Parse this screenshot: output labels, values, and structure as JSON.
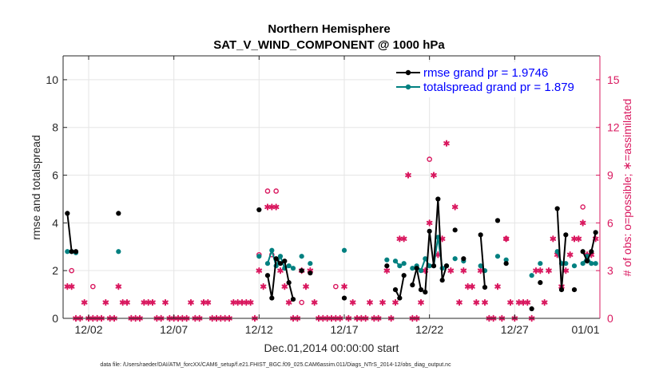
{
  "chart_data": {
    "type": "scatter",
    "title": "Northern Hemisphere",
    "subtitle": "SAT_V_WIND_COMPONENT @ 1000 hPa",
    "xlabel": "Dec.01,2014 00:00:00 start",
    "ylabel": "rmse and totalspread",
    "y2label": "# of obs: o=possible; ∗=assimilated",
    "footnote": "data file: /Users/raeder/DAI/ATM_forcXX/CAM6_setup/f.e21.FHIST_BGC.f09_025.CAM6assim.011/Diags_NTrS_2014-12/obs_diag_output.nc",
    "xlim": [
      0.5,
      31.25
    ],
    "ylim": [
      0,
      11
    ],
    "y2lim": [
      0,
      16.5
    ],
    "x_ticks": [
      {
        "value": 2,
        "label": "12/02"
      },
      {
        "value": 7,
        "label": "12/07"
      },
      {
        "value": 12,
        "label": "12/12"
      },
      {
        "value": 17,
        "label": "12/17"
      },
      {
        "value": 22,
        "label": "12/22"
      },
      {
        "value": 27,
        "label": "12/27"
      },
      {
        "value": 32,
        "label": "01/01"
      }
    ],
    "y_ticks": [
      0,
      2,
      4,
      6,
      8,
      10
    ],
    "y2_ticks": [
      0,
      3,
      6,
      9,
      12,
      15
    ],
    "grid": true,
    "legend_position": "top-right",
    "colors": {
      "rmse": "#000000",
      "spread": "#008080",
      "obs": "#d9185f",
      "grid": "#e5e5e5",
      "axis": "#262626",
      "legend_text": "#0000ff"
    },
    "series": [
      {
        "name": "rmse grand pr = 1.9746",
        "key": "rmse",
        "points": [
          [
            0.75,
            4.4
          ],
          [
            1.0,
            2.8
          ],
          [
            1.25,
            2.8
          ],
          [
            3.75,
            4.4
          ],
          [
            12.0,
            4.55
          ],
          [
            12.5,
            1.8
          ],
          [
            12.75,
            0.85
          ],
          [
            13.0,
            2.5
          ],
          [
            13.25,
            2.3
          ],
          [
            13.5,
            2.4
          ],
          [
            13.75,
            1.5
          ],
          [
            14.0,
            0.8
          ],
          [
            14.5,
            2.0
          ],
          [
            15.0,
            1.9
          ],
          [
            17.0,
            0.85
          ],
          [
            19.5,
            2.2
          ],
          [
            20.0,
            1.2
          ],
          [
            20.25,
            0.85
          ],
          [
            20.5,
            1.8
          ],
          [
            21.0,
            1.4
          ],
          [
            21.25,
            2.1
          ],
          [
            21.5,
            1.2
          ],
          [
            21.75,
            1.1
          ],
          [
            22.0,
            3.65
          ],
          [
            22.25,
            2.2
          ],
          [
            22.5,
            5.0
          ],
          [
            22.75,
            1.6
          ],
          [
            23.0,
            2.2
          ],
          [
            23.5,
            3.7
          ],
          [
            24.0,
            2.5
          ],
          [
            25.0,
            3.5
          ],
          [
            25.25,
            1.3
          ],
          [
            26.0,
            4.1
          ],
          [
            26.5,
            2.3
          ],
          [
            28.0,
            0.4
          ],
          [
            28.5,
            1.5
          ],
          [
            29.5,
            4.6
          ],
          [
            29.75,
            1.2
          ],
          [
            30.0,
            3.5
          ],
          [
            30.5,
            1.2
          ],
          [
            31.0,
            2.8
          ],
          [
            31.25,
            2.4
          ],
          [
            31.5,
            2.8
          ],
          [
            31.75,
            3.6
          ]
        ]
      },
      {
        "name": "totalspread grand pr = 1.879",
        "key": "spread",
        "points": [
          [
            0.75,
            2.8
          ],
          [
            1.0,
            2.8
          ],
          [
            1.25,
            2.75
          ],
          [
            3.75,
            2.8
          ],
          [
            12.0,
            2.6
          ],
          [
            12.5,
            2.3
          ],
          [
            12.75,
            2.85
          ],
          [
            13.0,
            2.2
          ],
          [
            13.25,
            2.6
          ],
          [
            13.5,
            2.1
          ],
          [
            13.75,
            2.2
          ],
          [
            14.0,
            2.1
          ],
          [
            14.5,
            2.6
          ],
          [
            15.0,
            2.3
          ],
          [
            17.0,
            2.85
          ],
          [
            19.5,
            2.45
          ],
          [
            20.0,
            2.4
          ],
          [
            20.25,
            2.2
          ],
          [
            20.5,
            2.3
          ],
          [
            21.0,
            2.1
          ],
          [
            21.25,
            2.2
          ],
          [
            21.5,
            2.0
          ],
          [
            21.75,
            2.5
          ],
          [
            22.0,
            2.2
          ],
          [
            22.25,
            2.2
          ],
          [
            22.5,
            3.4
          ],
          [
            22.75,
            2.1
          ],
          [
            23.0,
            2.2
          ],
          [
            23.5,
            2.5
          ],
          [
            24.0,
            2.4
          ],
          [
            25.0,
            2.2
          ],
          [
            25.25,
            2.0
          ],
          [
            26.0,
            2.6
          ],
          [
            26.5,
            2.45
          ],
          [
            28.0,
            1.8
          ],
          [
            28.5,
            2.3
          ],
          [
            29.5,
            2.8
          ],
          [
            29.75,
            2.3
          ],
          [
            30.0,
            2.3
          ],
          [
            30.5,
            2.2
          ],
          [
            31.0,
            2.3
          ],
          [
            31.25,
            2.6
          ],
          [
            31.5,
            2.3
          ],
          [
            31.75,
            2.3
          ]
        ]
      },
      {
        "name": "possible obs",
        "key": "possible",
        "points": [
          [
            1.0,
            3.0
          ],
          [
            2.25,
            2.0
          ],
          [
            12.0,
            4.0
          ],
          [
            12.5,
            8.0
          ],
          [
            12.75,
            4.0
          ],
          [
            13.0,
            8.0
          ],
          [
            14.5,
            1.0
          ],
          [
            16.5,
            2.0
          ],
          [
            22.0,
            10.0
          ],
          [
            26.5,
            5.0
          ],
          [
            31.0,
            7.0
          ]
        ]
      },
      {
        "name": "assimilated obs",
        "key": "assimilated",
        "points": [
          [
            0.75,
            2.0
          ],
          [
            1.0,
            2.0
          ],
          [
            1.25,
            0.0
          ],
          [
            1.5,
            0.0
          ],
          [
            1.75,
            1.0
          ],
          [
            2.0,
            0.0
          ],
          [
            2.25,
            0.0
          ],
          [
            2.5,
            0.0
          ],
          [
            2.75,
            0.0
          ],
          [
            3.0,
            1.0
          ],
          [
            3.25,
            0.0
          ],
          [
            3.5,
            0.0
          ],
          [
            3.75,
            2.0
          ],
          [
            4.0,
            1.0
          ],
          [
            4.25,
            1.0
          ],
          [
            4.5,
            0.0
          ],
          [
            4.75,
            0.0
          ],
          [
            5.0,
            0.0
          ],
          [
            5.25,
            1.0
          ],
          [
            5.5,
            1.0
          ],
          [
            5.75,
            1.0
          ],
          [
            6.0,
            0.0
          ],
          [
            6.25,
            0.0
          ],
          [
            6.5,
            1.0
          ],
          [
            6.75,
            0.0
          ],
          [
            7.0,
            0.0
          ],
          [
            7.25,
            0.0
          ],
          [
            7.5,
            0.0
          ],
          [
            7.75,
            0.0
          ],
          [
            8.0,
            1.0
          ],
          [
            8.25,
            0.0
          ],
          [
            8.5,
            0.0
          ],
          [
            8.75,
            1.0
          ],
          [
            9.0,
            1.0
          ],
          [
            9.25,
            0.0
          ],
          [
            9.5,
            0.0
          ],
          [
            9.75,
            0.0
          ],
          [
            10.0,
            0.0
          ],
          [
            10.25,
            0.0
          ],
          [
            10.5,
            1.0
          ],
          [
            10.75,
            1.0
          ],
          [
            11.0,
            1.0
          ],
          [
            11.25,
            1.0
          ],
          [
            11.5,
            1.0
          ],
          [
            11.75,
            0.0
          ],
          [
            12.0,
            3.0
          ],
          [
            12.25,
            2.0
          ],
          [
            12.5,
            7.0
          ],
          [
            12.75,
            7.0
          ],
          [
            13.0,
            7.0
          ],
          [
            13.25,
            3.0
          ],
          [
            13.5,
            2.0
          ],
          [
            13.75,
            1.0
          ],
          [
            14.0,
            0.0
          ],
          [
            14.25,
            0.0
          ],
          [
            14.5,
            3.0
          ],
          [
            14.75,
            2.0
          ],
          [
            15.0,
            3.0
          ],
          [
            15.25,
            1.0
          ],
          [
            15.5,
            0.0
          ],
          [
            15.75,
            0.0
          ],
          [
            16.0,
            0.0
          ],
          [
            16.25,
            0.0
          ],
          [
            16.5,
            0.0
          ],
          [
            16.75,
            0.0
          ],
          [
            17.0,
            2.0
          ],
          [
            17.25,
            0.0
          ],
          [
            17.5,
            1.0
          ],
          [
            17.75,
            0.0
          ],
          [
            18.0,
            0.0
          ],
          [
            18.25,
            0.0
          ],
          [
            18.5,
            1.0
          ],
          [
            18.75,
            0.0
          ],
          [
            19.0,
            0.0
          ],
          [
            19.25,
            1.0
          ],
          [
            19.5,
            3.0
          ],
          [
            19.75,
            0.0
          ],
          [
            20.0,
            1.0
          ],
          [
            20.25,
            5.0
          ],
          [
            20.5,
            5.0
          ],
          [
            20.75,
            9.0
          ],
          [
            21.0,
            0.0
          ],
          [
            21.25,
            0.0
          ],
          [
            21.5,
            1.0
          ],
          [
            21.75,
            3.0
          ],
          [
            22.0,
            6.0
          ],
          [
            22.25,
            9.0
          ],
          [
            22.5,
            4.0
          ],
          [
            22.75,
            5.0
          ],
          [
            23.0,
            11.0
          ],
          [
            23.25,
            3.0
          ],
          [
            23.5,
            7.0
          ],
          [
            23.75,
            1.0
          ],
          [
            24.0,
            3.0
          ],
          [
            24.25,
            2.0
          ],
          [
            24.5,
            2.0
          ],
          [
            24.75,
            1.0
          ],
          [
            25.0,
            3.0
          ],
          [
            25.25,
            1.0
          ],
          [
            25.5,
            0.0
          ],
          [
            25.75,
            0.0
          ],
          [
            26.0,
            2.0
          ],
          [
            26.25,
            0.0
          ],
          [
            26.5,
            5.0
          ],
          [
            26.75,
            1.0
          ],
          [
            27.0,
            0.0
          ],
          [
            27.25,
            1.0
          ],
          [
            27.5,
            1.0
          ],
          [
            27.75,
            1.0
          ],
          [
            28.0,
            0.0
          ],
          [
            28.25,
            3.0
          ],
          [
            28.5,
            3.0
          ],
          [
            28.75,
            1.0
          ],
          [
            29.0,
            3.0
          ],
          [
            29.25,
            5.0
          ],
          [
            29.5,
            4.0
          ],
          [
            29.75,
            2.0
          ],
          [
            30.0,
            3.0
          ],
          [
            30.25,
            4.0
          ],
          [
            30.5,
            5.0
          ],
          [
            30.75,
            5.0
          ],
          [
            31.0,
            6.0
          ],
          [
            31.25,
            4.0
          ],
          [
            31.5,
            4.0
          ],
          [
            31.75,
            5.0
          ]
        ]
      }
    ]
  }
}
